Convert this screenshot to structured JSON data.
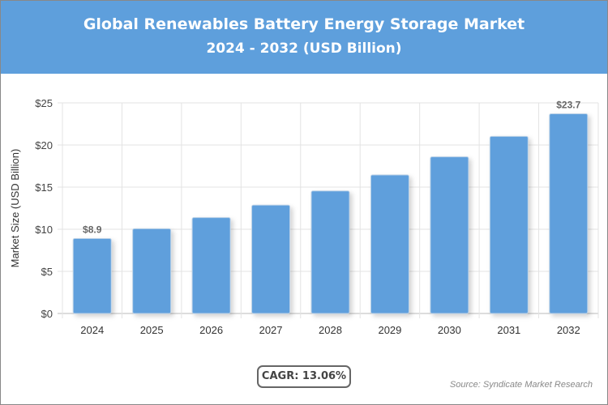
{
  "header": {
    "title": "Global Renewables Battery Energy Storage Market",
    "subtitle": "2024 - 2032 (USD Billion)"
  },
  "chart_data": {
    "type": "bar",
    "title": "Global Renewables Battery Energy Storage Market",
    "subtitle": "2024 - 2032 (USD Billion)",
    "categories": [
      "2024",
      "2025",
      "2026",
      "2027",
      "2028",
      "2029",
      "2030",
      "2031",
      "2032"
    ],
    "values": [
      8.9,
      10.06,
      11.38,
      12.86,
      14.54,
      16.44,
      18.59,
      21.02,
      23.7
    ],
    "data_labels": {
      "0": "$8.9",
      "8": "$23.7"
    },
    "ylabel": "Market Size (USD Billion)",
    "xlabel": "",
    "ylim": [
      0,
      25
    ],
    "yticks": [
      0,
      5,
      10,
      15,
      20,
      25
    ],
    "ytick_labels": [
      "$0",
      "$5",
      "$10",
      "$15",
      "$20",
      "$25"
    ],
    "grid": true,
    "bar_color": "#5e9fdc"
  },
  "footer": {
    "cagr": "CAGR: 13.06%",
    "source": "Source: Syndicate Market Research"
  }
}
